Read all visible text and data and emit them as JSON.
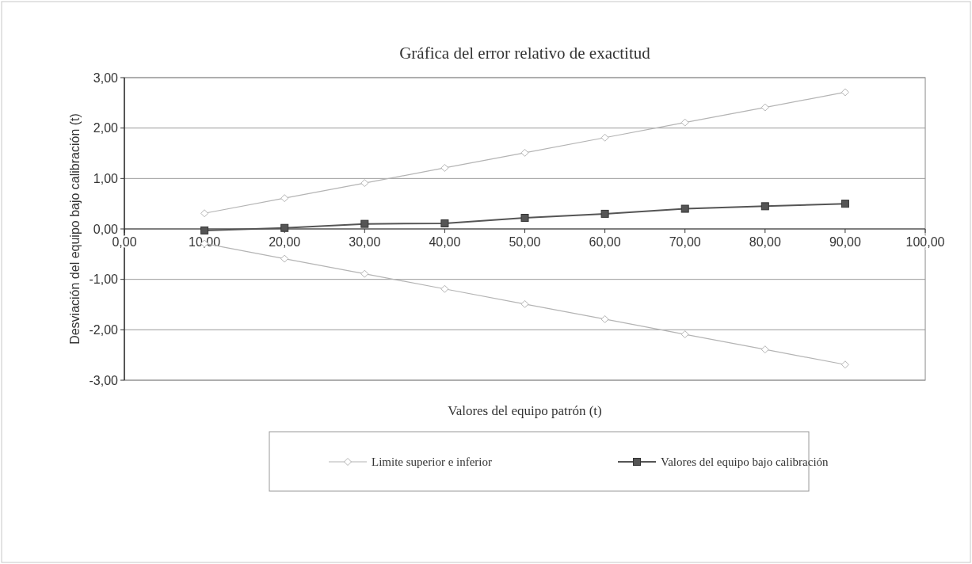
{
  "chart_data": {
    "type": "line",
    "title": "Gráfica del error relativo de exactitud",
    "xlabel": "Valores del equipo patrón (t)",
    "ylabel": "Desviación del equipo bajo calibración (t)",
    "x": [
      10,
      20,
      30,
      40,
      50,
      60,
      70,
      80,
      90
    ],
    "series": [
      {
        "name": "Limite superior e inferior",
        "color": "#b4b4b4",
        "marker": "diamond",
        "values": [
          0.31,
          0.61,
          0.91,
          1.21,
          1.51,
          1.81,
          2.11,
          2.41,
          2.71
        ]
      },
      {
        "color": "#b4b4b4",
        "marker": "diamond",
        "values": [
          -0.29,
          -0.59,
          -0.89,
          -1.19,
          -1.49,
          -1.79,
          -2.09,
          -2.39,
          -2.69
        ]
      },
      {
        "name": "Valores del equipo bajo calibración",
        "color": "#555555",
        "marker": "square",
        "values": [
          -0.03,
          0.02,
          0.1,
          0.11,
          0.22,
          0.3,
          0.4,
          0.45,
          0.5
        ]
      }
    ],
    "xlim": [
      0,
      100
    ],
    "xticks": [
      {
        "value": 0,
        "label": "0,00"
      },
      {
        "value": 10,
        "label": "10,00"
      },
      {
        "value": 20,
        "label": "20,00"
      },
      {
        "value": 30,
        "label": "30,00"
      },
      {
        "value": 40,
        "label": "40,00"
      },
      {
        "value": 50,
        "label": "50,00"
      },
      {
        "value": 60,
        "label": "60,00"
      },
      {
        "value": 70,
        "label": "70,00"
      },
      {
        "value": 80,
        "label": "80,00"
      },
      {
        "value": 90,
        "label": "90,00"
      },
      {
        "value": 100,
        "label": "100,00"
      }
    ],
    "ylim": [
      -3,
      3
    ],
    "yticks": [
      {
        "value": -3,
        "label": "-3,00"
      },
      {
        "value": -2,
        "label": "-2,00"
      },
      {
        "value": -1,
        "label": "-1,00"
      },
      {
        "value": 0,
        "label": "0,00"
      },
      {
        "value": 1,
        "label": "1,00"
      },
      {
        "value": 2,
        "label": "2,00"
      },
      {
        "value": 3,
        "label": "3,00"
      }
    ],
    "grid": "y",
    "legend": "bottom",
    "line_style": "solid"
  }
}
